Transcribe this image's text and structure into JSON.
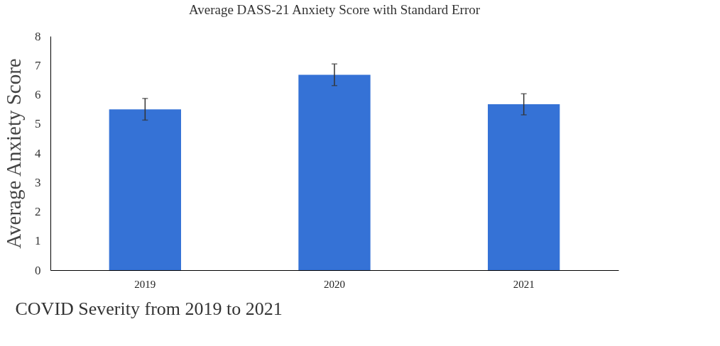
{
  "chart_data": {
    "type": "bar",
    "title": "Average DASS-21 Anxiety Score with Standard Error",
    "xlabel": "COVID Severity from 2019 to 2021",
    "ylabel": "Average Anxiety Score",
    "categories": [
      "2019",
      "2020",
      "2021"
    ],
    "values": [
      5.5,
      6.68,
      5.67
    ],
    "errors": [
      0.37,
      0.37,
      0.36
    ],
    "color": "#3572d6",
    "ylim": [
      0,
      8
    ],
    "yticks": [
      0,
      1,
      2,
      3,
      4,
      5,
      6,
      7,
      8
    ],
    "grid": false
  }
}
